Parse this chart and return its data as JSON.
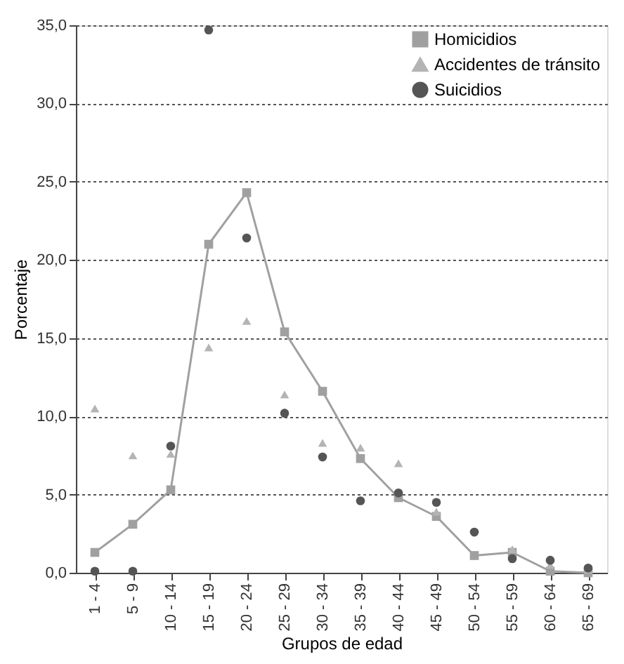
{
  "chart_data": {
    "type": "line",
    "xlabel": "Grupos de edad",
    "ylabel": "Porcentaje",
    "categories": [
      "1 - 4",
      "5 - 9",
      "10 - 14",
      "15 - 19",
      "20 - 24",
      "25 - 29",
      "30 - 34",
      "35 - 39",
      "40 - 44",
      "45 - 49",
      "50 - 54",
      "55 - 59",
      "60 - 64",
      "65 - 69"
    ],
    "series": [
      {
        "name": "Homicidios",
        "type": "line",
        "marker": "square",
        "color": "#a0a0a0",
        "values": [
          1.3,
          3.1,
          5.3,
          21.0,
          24.3,
          15.4,
          11.6,
          7.3,
          4.8,
          3.6,
          1.1,
          1.3,
          0.1,
          0.0
        ]
      },
      {
        "name": "Accidentes de tránsito",
        "type": "scatter",
        "marker": "triangle",
        "color": "#b4b4b4",
        "values": [
          10.5,
          7.5,
          7.6,
          14.4,
          16.1,
          11.4,
          8.3,
          8.0,
          7.0,
          3.9,
          null,
          1.5,
          0.5,
          0.2
        ]
      },
      {
        "name": "Suicidios",
        "type": "scatter",
        "marker": "circle",
        "color": "#555555",
        "values": [
          0.1,
          0.1,
          8.1,
          34.7,
          21.4,
          10.2,
          7.4,
          4.6,
          5.1,
          4.5,
          2.6,
          0.9,
          0.8,
          0.3
        ]
      }
    ],
    "ylim": [
      0,
      35
    ],
    "yticks": [
      {
        "value": 0,
        "label": "0,0"
      },
      {
        "value": 5,
        "label": "5,0"
      },
      {
        "value": 10,
        "label": "10,0"
      },
      {
        "value": 15,
        "label": "15,0"
      },
      {
        "value": 20,
        "label": "20,0"
      },
      {
        "value": 25,
        "label": "25,0"
      },
      {
        "value": 30,
        "label": "30,0"
      },
      {
        "value": 35,
        "label": "35,0"
      }
    ],
    "grid": "y",
    "legend": "top right"
  }
}
